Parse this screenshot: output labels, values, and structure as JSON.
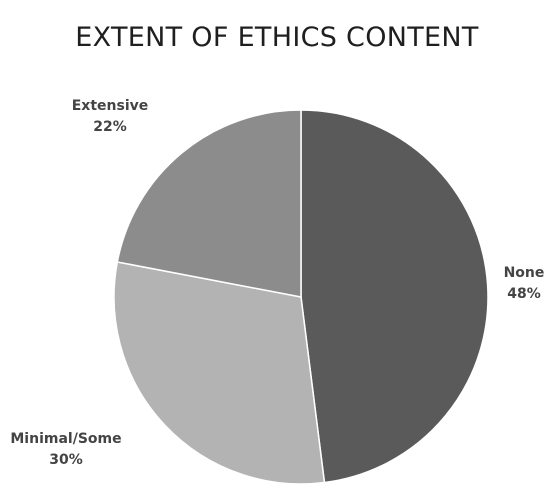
{
  "chart_data": {
    "type": "pie",
    "title": "EXTENT OF ETHICS CONTENT",
    "slices": [
      {
        "label": "None",
        "value": 48,
        "value_label": "48%",
        "color": "#5a5a5a"
      },
      {
        "label": "Minimal/Some",
        "value": 30,
        "value_label": "30%",
        "color": "#b3b3b3"
      },
      {
        "label": "Extensive",
        "value": 22,
        "value_label": "22%",
        "color": "#8c8c8c"
      }
    ],
    "start": "12 o'clock",
    "direction": "clockwise",
    "legend": "none (labels next to slices)"
  }
}
